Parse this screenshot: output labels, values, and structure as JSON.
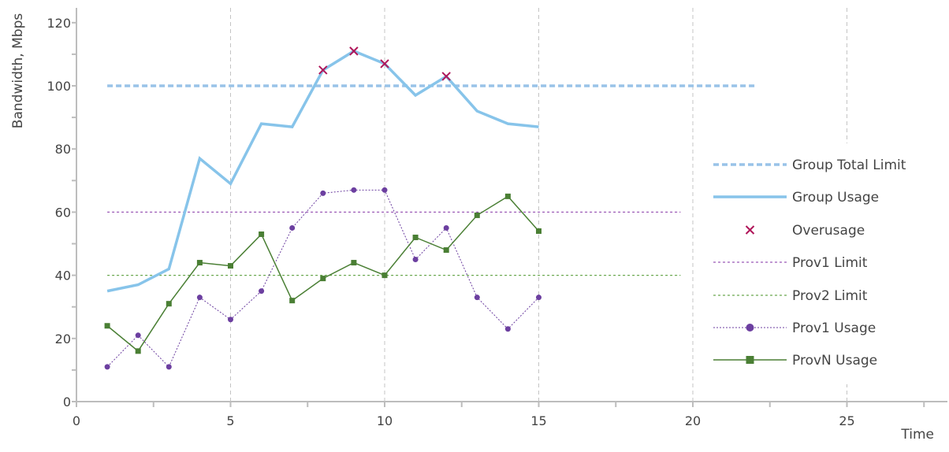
{
  "chart_data": {
    "type": "line",
    "xlabel": "Time",
    "ylabel": "Bandwidth, Mbps",
    "xlim": [
      0,
      28
    ],
    "ylim": [
      0,
      125
    ],
    "x_ticks": [
      "0",
      "5",
      "10",
      "15",
      "20",
      "25"
    ],
    "y_ticks": [
      "0",
      "20",
      "40",
      "60",
      "80",
      "100",
      "120"
    ],
    "grid": "vertical dashed at major x ticks",
    "legend_position": "right",
    "series": [
      {
        "name": "Group Total Limit",
        "style": "dashed-thick",
        "color": "#99c3e8",
        "x": [
          1,
          22
        ],
        "y": [
          100,
          100
        ]
      },
      {
        "name": "Group Usage",
        "style": "solid-thick",
        "color": "#87c4ea",
        "x": [
          1,
          2,
          3,
          4,
          5,
          6,
          7,
          8,
          9,
          10,
          11,
          12,
          13,
          14,
          15
        ],
        "y": [
          35,
          37,
          42,
          77,
          69,
          88,
          87,
          105,
          111,
          107,
          97,
          103,
          92,
          88,
          87
        ]
      },
      {
        "name": "Overusage",
        "style": "x-markers",
        "color": "#b0175a",
        "x": [
          8,
          9,
          10,
          12
        ],
        "y": [
          105,
          111,
          107,
          103
        ]
      },
      {
        "name": "Prov1 Limit",
        "style": "dotted",
        "color": "#9b59b6",
        "x": [
          1,
          19.6
        ],
        "y": [
          60,
          60
        ]
      },
      {
        "name": "Prov2 Limit",
        "style": "dotted",
        "color": "#6aa84f",
        "x": [
          1,
          19.6
        ],
        "y": [
          40,
          40
        ]
      },
      {
        "name": "Prov1 Usage",
        "style": "dotted-circles",
        "color": "#6c3fa0",
        "x": [
          1,
          2,
          3,
          4,
          5,
          6,
          7,
          8,
          9,
          10,
          11,
          12,
          13,
          14,
          15
        ],
        "y": [
          11,
          21,
          11,
          33,
          26,
          35,
          55,
          66,
          67,
          67,
          45,
          55,
          33,
          23,
          33
        ]
      },
      {
        "name": "ProvN Usage",
        "style": "solid-squares",
        "color": "#4a7f34",
        "x": [
          1,
          2,
          3,
          4,
          5,
          6,
          7,
          8,
          9,
          10,
          11,
          12,
          13,
          14,
          15
        ],
        "y": [
          24,
          16,
          31,
          44,
          43,
          53,
          32,
          39,
          44,
          40,
          52,
          48,
          59,
          65,
          54
        ]
      }
    ]
  }
}
